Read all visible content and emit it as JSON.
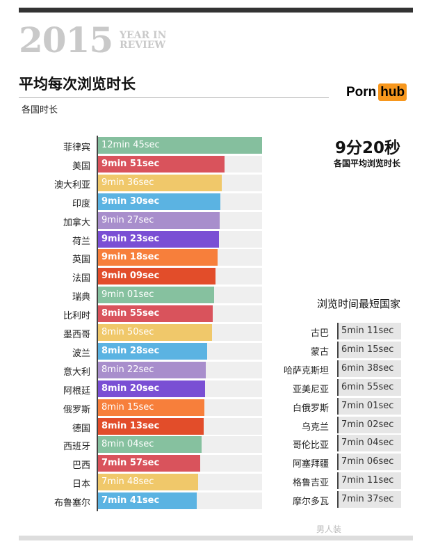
{
  "header": {
    "year": "2015",
    "year_in_review": "YEAR IN REVIEW",
    "title": "平均每次浏览时长",
    "subtitle": "各国时长",
    "logo_left": "Porn",
    "logo_right": "hub"
  },
  "average": {
    "value": "9分20秒",
    "label": "各国平均浏览时长"
  },
  "shortest_title": "浏览时间最短国家",
  "watermark": "男人装",
  "colors": [
    "#85bf9e",
    "#d9535c",
    "#f0c86a",
    "#5bb3e2",
    "#a88ecc",
    "#7a4fd4",
    "#f77f3b",
    "#e24d2a",
    "#86c19f",
    "#d9535c",
    "#f0c86a",
    "#5bb3e2",
    "#a88ecc",
    "#7a4fd4",
    "#f77f3b",
    "#e24d2a",
    "#86c19f",
    "#d9535c",
    "#f0c86a",
    "#5bb3e2"
  ],
  "chart_data": [
    {
      "type": "bar",
      "orientation": "horizontal",
      "title": "平均每次浏览时长",
      "subtitle": "各国时长",
      "unit": "seconds",
      "xlim": [
        0,
        765
      ],
      "categories": [
        "菲律宾",
        "美国",
        "澳大利亚",
        "印度",
        "加拿大",
        "荷兰",
        "英国",
        "法国",
        "瑞典",
        "比利时",
        "墨西哥",
        "波兰",
        "意大利",
        "阿根廷",
        "俄罗斯",
        "德国",
        "西班牙",
        "巴西",
        "日本",
        "布鲁塞尔"
      ],
      "value_labels": [
        "12min 45sec",
        "9min 51sec",
        "9min 36sec",
        "9min 30sec",
        "9min 27sec",
        "9min 23sec",
        "9min 18sec",
        "9min 09sec",
        "9min 01sec",
        "8min 55sec",
        "8min 50sec",
        "8min 28sec",
        "8min 22sec",
        "8min 20sec",
        "8min 15sec",
        "8min 13sec",
        "8min 04sec",
        "7min 57sec",
        "7min 48sec",
        "7min 41sec"
      ],
      "values": [
        765,
        591,
        576,
        570,
        567,
        563,
        558,
        549,
        541,
        535,
        530,
        508,
        502,
        500,
        495,
        493,
        484,
        477,
        468,
        461
      ]
    },
    {
      "type": "table",
      "title": "浏览时间最短国家",
      "categories": [
        "古巴",
        "蒙古",
        "哈萨克斯坦",
        "亚美尼亚",
        "白俄罗斯",
        "乌克兰",
        "哥伦比亚",
        "阿塞拜疆",
        "格鲁吉亚",
        "摩尔多瓦"
      ],
      "value_labels": [
        "5min 11sec",
        "6min 15sec",
        "6min 38sec",
        "6min 55sec",
        "7min 01sec",
        "7min 02sec",
        "7min 04sec",
        "7min 06sec",
        "7min 11sec",
        "7min 37sec"
      ],
      "values": [
        311,
        375,
        398,
        415,
        421,
        422,
        424,
        426,
        431,
        457
      ]
    }
  ]
}
